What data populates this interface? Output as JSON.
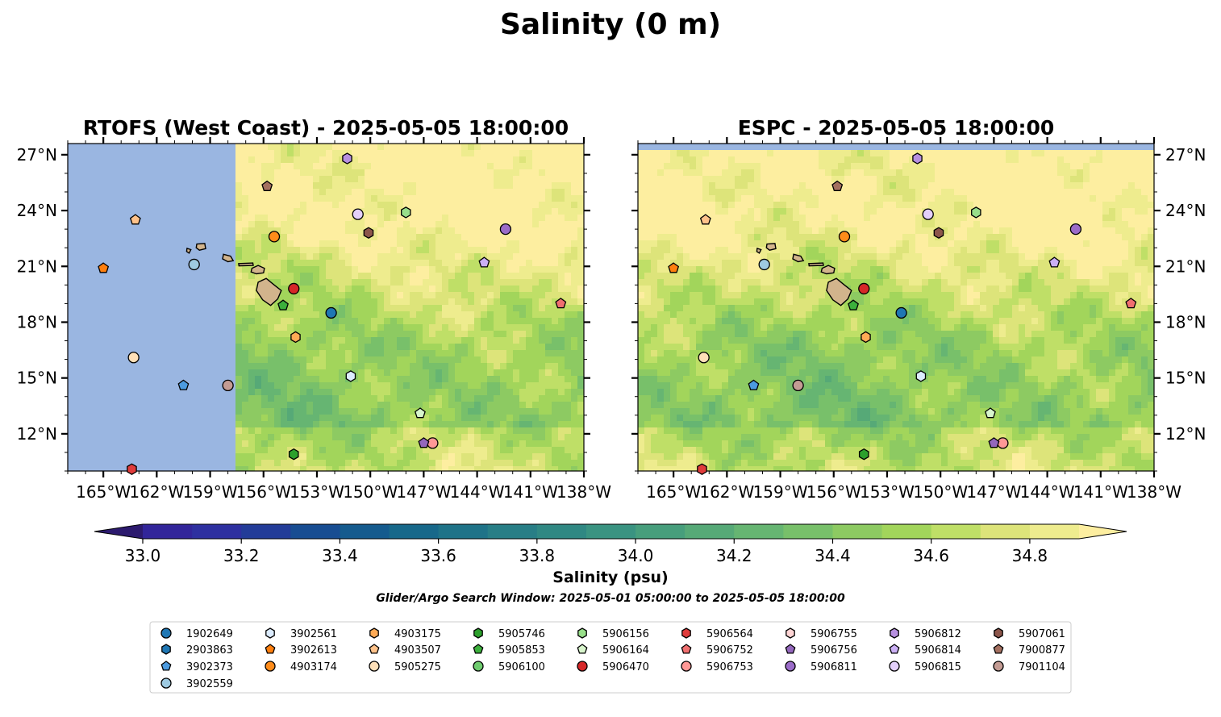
{
  "figure": {
    "title": "Salinity (0 m)",
    "caption": "Glider/Argo Search Window: 2025-05-01 05:00:00 to 2025-05-05 18:00:00"
  },
  "colors": {
    "no_data": "#9ab6e1",
    "background": "#ffffff"
  },
  "chart_data": {
    "type": "heatmap",
    "variable": "Salinity",
    "panels": [
      {
        "title": "RTOFS (West Coast) - 2025-05-05 18:00:00",
        "lat_tick_side": "left",
        "no_data_west_of_lon": -157.7,
        "no_data_north_of_lat": null
      },
      {
        "title": "ESPC - 2025-05-05 18:00:00",
        "lat_tick_side": "right",
        "no_data_west_of_lon": null,
        "no_data_north_of_lat": 27.1
      }
    ],
    "lon_range": [
      -167,
      -138
    ],
    "lat_range": [
      10,
      27.6
    ],
    "lon_ticks": [
      -165,
      -162,
      -159,
      -156,
      -153,
      -150,
      -147,
      -144,
      -141,
      -138
    ],
    "lon_tick_labels": [
      "165°W",
      "162°W",
      "159°W",
      "156°W",
      "153°W",
      "150°W",
      "147°W",
      "144°W",
      "141°W",
      "138°W"
    ],
    "lat_ticks": [
      12,
      15,
      18,
      21,
      24,
      27
    ],
    "lat_tick_labels": [
      "12°N",
      "15°N",
      "18°N",
      "21°N",
      "24°N",
      "27°N"
    ],
    "colorbar": {
      "label": "Salinity (psu)",
      "min": 33.0,
      "max": 34.9,
      "step": 0.1,
      "extend": "both",
      "ticks": [
        33.0,
        33.2,
        33.4,
        33.6,
        33.8,
        34.0,
        34.2,
        34.4,
        34.6,
        34.8
      ],
      "tick_labels": [
        "33.0",
        "33.2",
        "33.4",
        "33.6",
        "33.8",
        "34.0",
        "34.2",
        "34.4",
        "34.6",
        "34.8"
      ],
      "colors": [
        "#2c1a6e",
        "#32259a",
        "#2e30a0",
        "#233c98",
        "#184d92",
        "#155b8e",
        "#17688a",
        "#1f7388",
        "#287e86",
        "#308883",
        "#3a9381",
        "#479e7c",
        "#56a977",
        "#66b572",
        "#78c06a",
        "#8dca62",
        "#a2d55b",
        "#bfdf67",
        "#dde47a",
        "#eeec8e",
        "#fdeea0"
      ]
    },
    "islands": [
      {
        "name": "Hawaii",
        "lon": -155.5,
        "lat": 19.6
      },
      {
        "name": "Maui",
        "lon": -156.3,
        "lat": 20.8
      },
      {
        "name": "Molokai",
        "lon": -157.0,
        "lat": 21.1
      },
      {
        "name": "Oahu",
        "lon": -158.0,
        "lat": 21.45
      },
      {
        "name": "Kauai",
        "lon": -159.5,
        "lat": 22.05
      },
      {
        "name": "Niihau",
        "lon": -160.2,
        "lat": 21.85
      }
    ],
    "floats": [
      {
        "id": "1902649",
        "color": "#1f77b4",
        "marker": "circle",
        "lon": -152.2,
        "lat": 18.5
      },
      {
        "id": "2903863",
        "color": "#1f77b4",
        "marker": "hexagon",
        "lon": null,
        "lat": null
      },
      {
        "id": "3902373",
        "color": "#4c9be0",
        "marker": "pentagon",
        "lon": -160.5,
        "lat": 14.6
      },
      {
        "id": "3902559",
        "color": "#9ecae1",
        "marker": "circle",
        "lon": -159.9,
        "lat": 21.1
      },
      {
        "id": "3902561",
        "color": "#dcecff",
        "marker": "hexagon",
        "lon": -151.1,
        "lat": 15.1
      },
      {
        "id": "3902613",
        "color": "#ff7f0e",
        "marker": "pentagon",
        "lon": -165.0,
        "lat": 20.9
      },
      {
        "id": "4903174",
        "color": "#ff8c1a",
        "marker": "circle",
        "lon": -155.4,
        "lat": 22.6
      },
      {
        "id": "4903175",
        "color": "#ffaa55",
        "marker": "hexagon",
        "lon": -154.2,
        "lat": 17.2
      },
      {
        "id": "4903507",
        "color": "#ffc28a",
        "marker": "pentagon",
        "lon": -163.2,
        "lat": 23.5
      },
      {
        "id": "5905275",
        "color": "#ffe0b8",
        "marker": "circle",
        "lon": -163.3,
        "lat": 16.1
      },
      {
        "id": "5905746",
        "color": "#2ca02c",
        "marker": "hexagon",
        "lon": -154.3,
        "lat": 10.9
      },
      {
        "id": "5905853",
        "color": "#3cb03c",
        "marker": "pentagon",
        "lon": -154.9,
        "lat": 18.9
      },
      {
        "id": "5906100",
        "color": "#6fcc6f",
        "marker": "circle",
        "lon": null,
        "lat": null
      },
      {
        "id": "5906156",
        "color": "#98df8a",
        "marker": "hexagon",
        "lon": -148.0,
        "lat": 23.9
      },
      {
        "id": "5906164",
        "color": "#d8f5cc",
        "marker": "pentagon",
        "lon": -147.2,
        "lat": 13.1
      },
      {
        "id": "5906470",
        "color": "#d62728",
        "marker": "circle",
        "lon": -154.3,
        "lat": 19.8
      },
      {
        "id": "5906564",
        "color": "#e03b3b",
        "marker": "hexagon",
        "lon": -163.4,
        "lat": 10.1
      },
      {
        "id": "5906752",
        "color": "#f07070",
        "marker": "pentagon",
        "lon": -139.3,
        "lat": 19.0
      },
      {
        "id": "5906753",
        "color": "#ff9896",
        "marker": "circle",
        "lon": -146.5,
        "lat": 11.5
      },
      {
        "id": "5906755",
        "color": "#ffd5d5",
        "marker": "hexagon",
        "lon": null,
        "lat": null
      },
      {
        "id": "5906756",
        "color": "#9467bd",
        "marker": "pentagon",
        "lon": -147.0,
        "lat": 11.5
      },
      {
        "id": "5906811",
        "color": "#9b6cc9",
        "marker": "circle",
        "lon": -142.4,
        "lat": 23.0
      },
      {
        "id": "5906812",
        "color": "#b790e0",
        "marker": "hexagon",
        "lon": -151.3,
        "lat": 26.8
      },
      {
        "id": "5906814",
        "color": "#cbb0f5",
        "marker": "pentagon",
        "lon": -143.6,
        "lat": 21.2
      },
      {
        "id": "5906815",
        "color": "#e4d0fb",
        "marker": "circle",
        "lon": -150.7,
        "lat": 23.8
      },
      {
        "id": "5907061",
        "color": "#8c564b",
        "marker": "hexagon",
        "lon": -150.1,
        "lat": 22.8
      },
      {
        "id": "7900877",
        "color": "#a47060",
        "marker": "pentagon",
        "lon": -155.8,
        "lat": 25.3
      },
      {
        "id": "7901104",
        "color": "#c49c94",
        "marker": "circle",
        "lon": -158.0,
        "lat": 14.6
      }
    ]
  }
}
